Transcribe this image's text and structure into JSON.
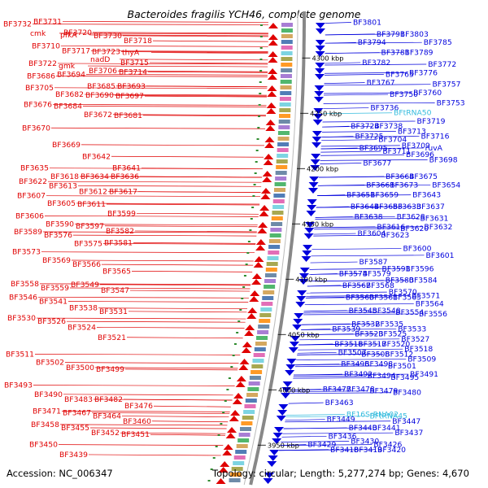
{
  "title": "Bacteroides fragilis YCH46, complete genome",
  "footer": {
    "accession": "Accession: NC_006347",
    "summary": "Topology: circular; Length: 5,277,274 bp; Genes: 4,670"
  },
  "colors": {
    "reverse_strand": "#e00000",
    "forward_strand": "#0000dd",
    "rna": "#33bbdd",
    "backbone": "#888888",
    "tick": "#2e8b2e"
  },
  "scale_marks": [
    {
      "label": "4300 kbp",
      "pos": 0.046
    },
    {
      "label": "4250 kbp",
      "pos": 0.146
    },
    {
      "label": "4200 kbp",
      "pos": 0.246
    },
    {
      "label": "4150 kbp",
      "pos": 0.346
    },
    {
      "label": "4100 kbp",
      "pos": 0.446
    },
    {
      "label": "4050 kbp",
      "pos": 0.546
    },
    {
      "label": "4000 kbp",
      "pos": 0.646
    },
    {
      "label": "3950 kbp",
      "pos": 0.746
    }
  ],
  "left_labels": [
    {
      "t": "BF3732",
      "p": 0.018
    },
    {
      "t": "BF3731",
      "p": 0.015
    },
    {
      "t": "BF3720",
      "p": 0.028
    },
    {
      "t": "BF3730",
      "p": 0.032
    },
    {
      "t": "BF3718",
      "p": 0.038
    },
    {
      "t": "BF3710",
      "p": 0.044
    },
    {
      "t": "BF3717",
      "p": 0.05
    },
    {
      "t": "BF3723",
      "p": 0.051
    },
    {
      "t": "thyA",
      "p": 0.052
    },
    {
      "t": "cmk",
      "p": 0.029
    },
    {
      "t": "pfkA",
      "p": 0.031
    },
    {
      "t": "nadD",
      "p": 0.06
    },
    {
      "t": "BF3715",
      "p": 0.064
    },
    {
      "t": "BF3722",
      "p": 0.065
    },
    {
      "t": "gmk",
      "p": 0.068
    },
    {
      "t": "BF3706",
      "p": 0.074
    },
    {
      "t": "BF3714",
      "p": 0.075
    },
    {
      "t": "BF3686",
      "p": 0.08
    },
    {
      "t": "BF3694",
      "p": 0.078
    },
    {
      "t": "BF3685",
      "p": 0.092
    },
    {
      "t": "BF3693",
      "p": 0.092
    },
    {
      "t": "BF3705",
      "p": 0.094
    },
    {
      "t": "BF3682",
      "p": 0.102
    },
    {
      "t": "BF3690",
      "p": 0.103
    },
    {
      "t": "BF3697",
      "p": 0.104
    },
    {
      "t": "BF3676",
      "p": 0.114
    },
    {
      "t": "BF3684",
      "p": 0.116
    },
    {
      "t": "BF3672",
      "p": 0.126
    },
    {
      "t": "BF3681",
      "p": 0.127
    },
    {
      "t": "BF3670",
      "p": 0.142
    },
    {
      "t": "BF3669",
      "p": 0.162
    },
    {
      "t": "BF3642",
      "p": 0.176
    },
    {
      "t": "BF3641",
      "p": 0.19
    },
    {
      "t": "BF3635",
      "p": 0.19
    },
    {
      "t": "BF3618",
      "p": 0.2
    },
    {
      "t": "BF3634",
      "p": 0.2
    },
    {
      "t": "BF3636",
      "p": 0.2
    },
    {
      "t": "BF3622",
      "p": 0.206
    },
    {
      "t": "BF3613",
      "p": 0.211
    },
    {
      "t": "BF3612",
      "p": 0.218
    },
    {
      "t": "BF3617",
      "p": 0.218
    },
    {
      "t": "BF3607",
      "p": 0.223
    },
    {
      "t": "BF3605",
      "p": 0.232
    },
    {
      "t": "BF3611",
      "p": 0.233
    },
    {
      "t": "BF3599",
      "p": 0.244
    },
    {
      "t": "BF3606",
      "p": 0.247
    },
    {
      "t": "BF3590",
      "p": 0.257
    },
    {
      "t": "BF3597",
      "p": 0.259
    },
    {
      "t": "BF3582",
      "p": 0.265
    },
    {
      "t": "BF3589",
      "p": 0.266
    },
    {
      "t": "BF3576",
      "p": 0.27
    },
    {
      "t": "BF3575",
      "p": 0.28
    },
    {
      "t": "BF3581",
      "p": 0.279
    },
    {
      "t": "BF3573",
      "p": 0.29
    },
    {
      "t": "BF3569",
      "p": 0.3
    },
    {
      "t": "BF3566",
      "p": 0.305
    },
    {
      "t": "BF3565",
      "p": 0.313
    },
    {
      "t": "BF3558",
      "p": 0.328
    },
    {
      "t": "BF3559",
      "p": 0.333
    },
    {
      "t": "BF3549",
      "p": 0.329
    },
    {
      "t": "BF3547",
      "p": 0.336
    },
    {
      "t": "BF3546",
      "p": 0.344
    },
    {
      "t": "BF3541",
      "p": 0.349
    },
    {
      "t": "BF3538",
      "p": 0.357
    },
    {
      "t": "BF3531",
      "p": 0.361
    },
    {
      "t": "BF3530",
      "p": 0.369
    },
    {
      "t": "BF3526",
      "p": 0.373
    },
    {
      "t": "BF3524",
      "p": 0.38
    },
    {
      "t": "BF3521",
      "p": 0.392
    },
    {
      "t": "BF3511",
      "p": 0.412
    },
    {
      "t": "BF3502",
      "p": 0.422
    },
    {
      "t": "BF3500",
      "p": 0.428
    },
    {
      "t": "BF3499",
      "p": 0.43
    },
    {
      "t": "BF3493",
      "p": 0.449
    },
    {
      "t": "BF3490",
      "p": 0.46
    },
    {
      "t": "BF3483",
      "p": 0.466
    },
    {
      "t": "BF3482",
      "p": 0.466
    },
    {
      "t": "BF3476",
      "p": 0.474
    },
    {
      "t": "BF3471",
      "p": 0.48
    },
    {
      "t": "BF3467",
      "p": 0.482
    },
    {
      "t": "BF3464",
      "p": 0.486
    },
    {
      "t": "BF3460",
      "p": 0.492
    },
    {
      "t": "BF3458",
      "p": 0.496
    },
    {
      "t": "BF3455",
      "p": 0.5
    },
    {
      "t": "BF3452",
      "p": 0.506
    },
    {
      "t": "BF3451",
      "p": 0.508
    },
    {
      "t": "BF3450",
      "p": 0.52
    },
    {
      "t": "BF3439",
      "p": 0.532
    },
    {
      "t": "BF3438",
      "p": 0.54
    },
    {
      "t": "BF3435",
      "p": 0.552
    },
    {
      "t": "BF3434",
      "p": 0.553
    },
    {
      "t": "BF3431",
      "p": 0.556
    }
  ],
  "right_labels": [
    {
      "t": "BF3801",
      "p": 0.016
    },
    {
      "t": "BF3791",
      "p": 0.03
    },
    {
      "t": "BF3803",
      "p": 0.03
    },
    {
      "t": "BF3785",
      "p": 0.04
    },
    {
      "t": "BF3794",
      "p": 0.04
    },
    {
      "t": "BF3781",
      "p": 0.052
    },
    {
      "t": "BF3789",
      "p": 0.052
    },
    {
      "t": "BF3772",
      "p": 0.066
    },
    {
      "t": "BF3782",
      "p": 0.064
    },
    {
      "t": "BF3765",
      "p": 0.078
    },
    {
      "t": "BF3776",
      "p": 0.076
    },
    {
      "t": "BF3757",
      "p": 0.09
    },
    {
      "t": "BF3767",
      "p": 0.088
    },
    {
      "t": "BF3750",
      "p": 0.102
    },
    {
      "t": "BF3760",
      "p": 0.1
    },
    {
      "t": "BF3753",
      "p": 0.112
    },
    {
      "t": "BF3736",
      "p": 0.118
    },
    {
      "t": "BFtRNA50",
      "p": 0.124,
      "rna": true
    },
    {
      "t": "BF3719",
      "p": 0.134
    },
    {
      "t": "BF3724",
      "p": 0.14
    },
    {
      "t": "BF3738",
      "p": 0.14
    },
    {
      "t": "BF3713",
      "p": 0.146
    },
    {
      "t": "BF3716",
      "p": 0.152
    },
    {
      "t": "BF3725",
      "p": 0.152
    },
    {
      "t": "BF3704",
      "p": 0.156
    },
    {
      "t": "BF3709",
      "p": 0.163
    },
    {
      "t": "ruvA",
      "p": 0.166
    },
    {
      "t": "BF3695",
      "p": 0.166
    },
    {
      "t": "BF3711",
      "p": 0.17
    },
    {
      "t": "BF3696",
      "p": 0.174
    },
    {
      "t": "BF3698",
      "p": 0.18
    },
    {
      "t": "BF3677",
      "p": 0.184
    },
    {
      "t": "BF3664",
      "p": 0.2
    },
    {
      "t": "BF3675",
      "p": 0.2
    },
    {
      "t": "BF3654",
      "p": 0.21
    },
    {
      "t": "BF3661",
      "p": 0.21
    },
    {
      "t": "BF3673",
      "p": 0.21
    },
    {
      "t": "BF3643",
      "p": 0.222
    },
    {
      "t": "BF3651",
      "p": 0.222
    },
    {
      "t": "BF3659",
      "p": 0.222
    },
    {
      "t": "BF3633",
      "p": 0.236
    },
    {
      "t": "BF3637",
      "p": 0.236
    },
    {
      "t": "BF3644",
      "p": 0.236
    },
    {
      "t": "BF3653",
      "p": 0.236
    },
    {
      "t": "BF3628",
      "p": 0.248
    },
    {
      "t": "BF3631",
      "p": 0.25
    },
    {
      "t": "BF3638",
      "p": 0.248
    },
    {
      "t": "BF3616",
      "p": 0.26
    },
    {
      "t": "BF3620",
      "p": 0.262
    },
    {
      "t": "BF3632",
      "p": 0.26
    },
    {
      "t": "BF3604",
      "p": 0.268
    },
    {
      "t": "BF3623",
      "p": 0.27
    },
    {
      "t": "BF3600",
      "p": 0.286
    },
    {
      "t": "BF3601",
      "p": 0.294
    },
    {
      "t": "BF3587",
      "p": 0.302
    },
    {
      "t": "BF3591",
      "p": 0.31
    },
    {
      "t": "BF3596",
      "p": 0.31
    },
    {
      "t": "BF3574",
      "p": 0.316
    },
    {
      "t": "BF3579",
      "p": 0.316
    },
    {
      "t": "BF3580",
      "p": 0.324
    },
    {
      "t": "BF3584",
      "p": 0.324
    },
    {
      "t": "BF3567",
      "p": 0.33
    },
    {
      "t": "BF3568",
      "p": 0.33
    },
    {
      "t": "BF3570",
      "p": 0.338
    },
    {
      "t": "BF3571",
      "p": 0.342
    },
    {
      "t": "BF3560",
      "p": 0.344
    },
    {
      "t": "BF3561",
      "p": 0.344
    },
    {
      "t": "BF3563",
      "p": 0.344
    },
    {
      "t": "BF3564",
      "p": 0.352
    },
    {
      "t": "BF3545",
      "p": 0.36
    },
    {
      "t": "BF3548",
      "p": 0.36
    },
    {
      "t": "BF3554",
      "p": 0.362
    },
    {
      "t": "BF3556",
      "p": 0.364
    },
    {
      "t": "BF3532",
      "p": 0.376
    },
    {
      "t": "BF3535",
      "p": 0.376
    },
    {
      "t": "BF3533",
      "p": 0.382
    },
    {
      "t": "BF3539",
      "p": 0.382
    },
    {
      "t": "BF3523",
      "p": 0.388
    },
    {
      "t": "BF3525",
      "p": 0.388
    },
    {
      "t": "BF3527",
      "p": 0.394
    },
    {
      "t": "BF3516",
      "p": 0.4
    },
    {
      "t": "BF3517",
      "p": 0.4
    },
    {
      "t": "BF3520",
      "p": 0.4
    },
    {
      "t": "BF3518",
      "p": 0.406
    },
    {
      "t": "BF3507",
      "p": 0.41
    },
    {
      "t": "BF3508",
      "p": 0.412
    },
    {
      "t": "BF3512",
      "p": 0.412
    },
    {
      "t": "BF3509",
      "p": 0.418
    },
    {
      "t": "BF3496",
      "p": 0.424
    },
    {
      "t": "BF3498",
      "p": 0.424
    },
    {
      "t": "BF3501",
      "p": 0.426
    },
    {
      "t": "BF3491",
      "p": 0.436
    },
    {
      "t": "BF3492",
      "p": 0.436
    },
    {
      "t": "BF3494",
      "p": 0.438
    },
    {
      "t": "BF3495",
      "p": 0.44
    },
    {
      "t": "BF3477",
      "p": 0.454
    },
    {
      "t": "BF3478",
      "p": 0.454
    },
    {
      "t": "BF3479",
      "p": 0.456
    },
    {
      "t": "BF3480",
      "p": 0.458
    },
    {
      "t": "BF3463",
      "p": 0.47
    },
    {
      "t": "BF16SrRNA02",
      "p": 0.484,
      "rna": true
    },
    {
      "t": "BFtRNA45",
      "p": 0.486,
      "rna": true
    },
    {
      "t": "BF3447",
      "p": 0.492
    },
    {
      "t": "BF3449",
      "p": 0.49
    },
    {
      "t": "BF3440",
      "p": 0.5
    },
    {
      "t": "BF3441",
      "p": 0.5
    },
    {
      "t": "BF3437",
      "p": 0.506
    },
    {
      "t": "BF3436",
      "p": 0.51
    },
    {
      "t": "BF3430",
      "p": 0.516
    },
    {
      "t": "BF3426",
      "p": 0.52
    },
    {
      "t": "BF3429",
      "p": 0.52
    },
    {
      "t": "BF3418",
      "p": 0.526
    },
    {
      "t": "BF3419",
      "p": 0.526
    },
    {
      "t": "BF3420",
      "p": 0.526
    }
  ]
}
